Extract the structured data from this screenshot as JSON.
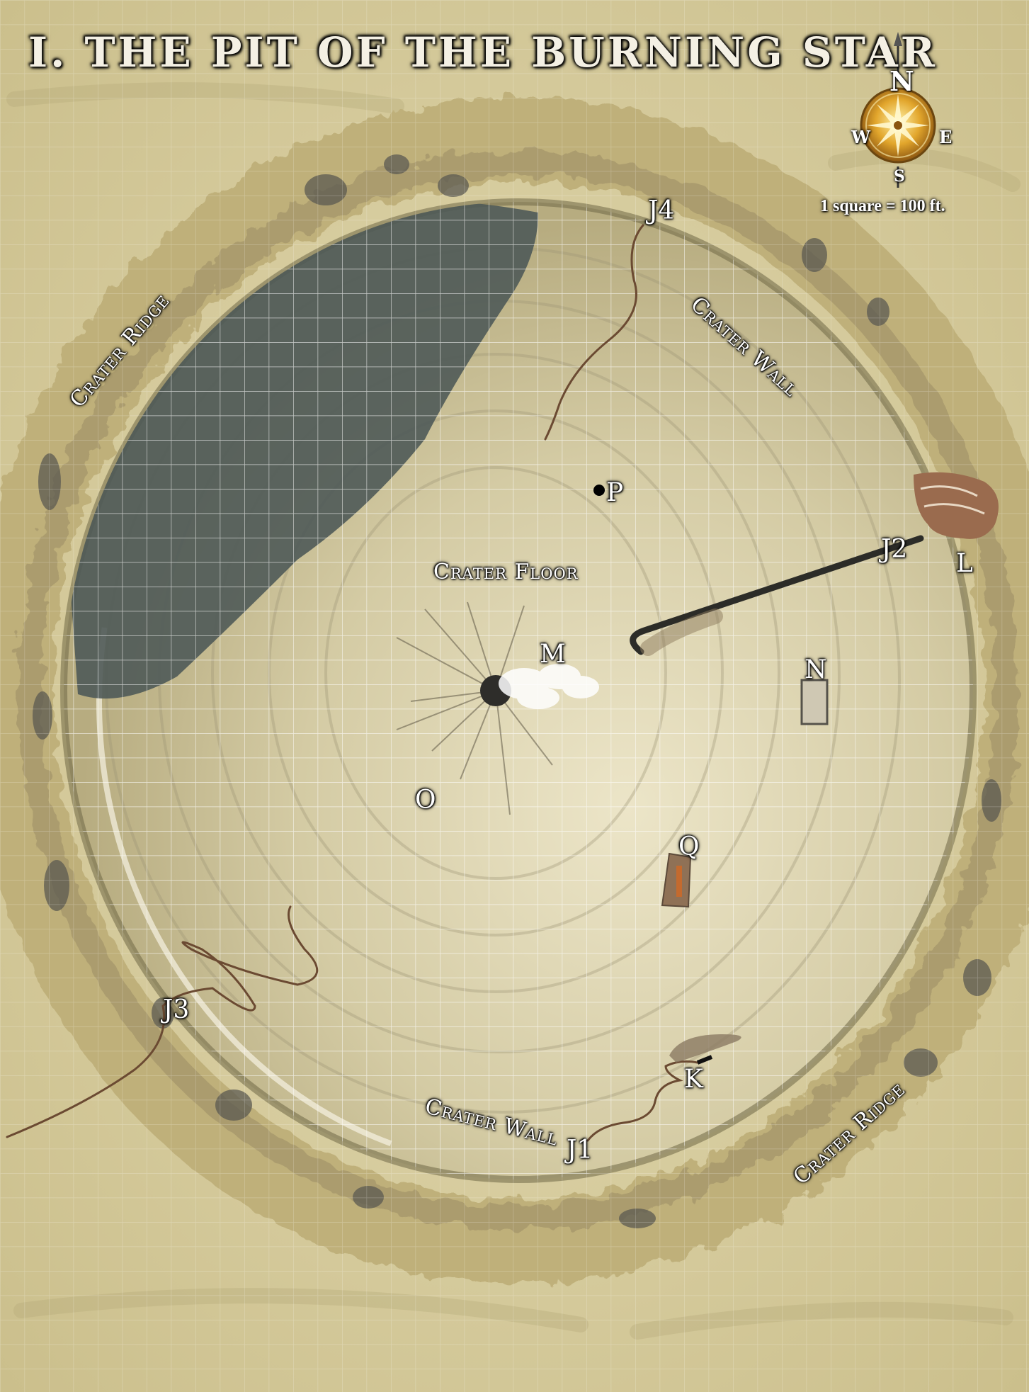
{
  "title": "I. THE PIT OF THE BURNING STAR",
  "compass": {
    "n": "N",
    "s": "S",
    "e": "E",
    "w": "W"
  },
  "scale": "1 square = 100 ft.",
  "regions": {
    "crater_ridge_nw": "Crater Ridge",
    "crater_ridge_se": "Crater Ridge",
    "crater_wall_ne": "Crater Wall",
    "crater_wall_s": "Crater Wall",
    "crater_floor": "Crater Floor"
  },
  "markers": {
    "j1": "J1",
    "j2": "J2",
    "j3": "J3",
    "j4": "J4",
    "k": "K",
    "l": "L",
    "m": "M",
    "n": "N",
    "o": "O",
    "p": "P",
    "q": "Q"
  },
  "colors": {
    "sand": "#d9cfa3",
    "ridge": "#c9bc8a",
    "crater_floor": "#cfc59d",
    "pool": "#4f5a58",
    "grid_line": "#ffffff",
    "trail": "#6b4a32",
    "rock_feature": "#9a6b4e"
  },
  "icons": [
    "compass-rose-icon"
  ]
}
